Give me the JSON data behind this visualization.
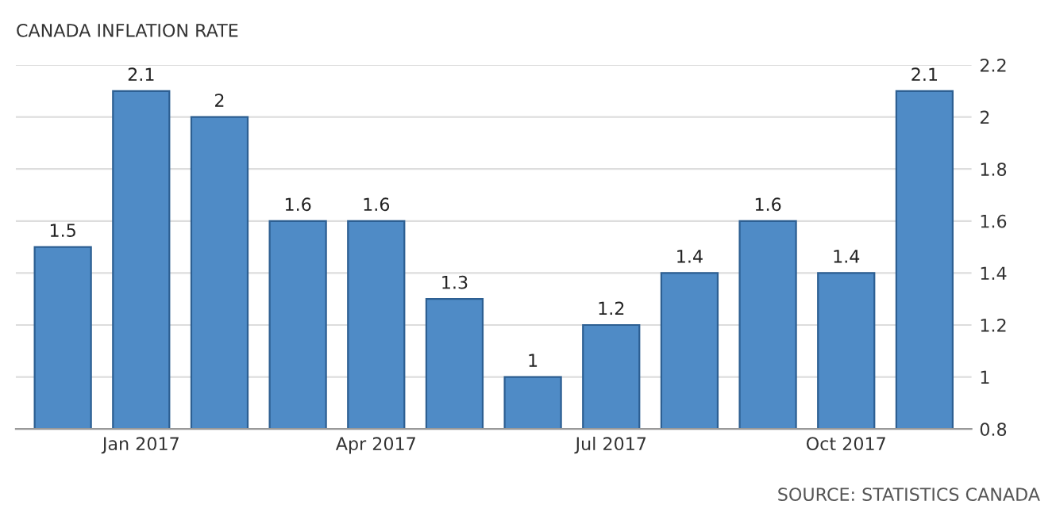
{
  "chart_data": {
    "type": "bar",
    "title": "CANADA INFLATION RATE",
    "categories": [
      null,
      "Jan 2017",
      null,
      null,
      "Apr 2017",
      null,
      null,
      "Jul 2017",
      null,
      null,
      "Oct 2017",
      null
    ],
    "values": [
      1.5,
      2.1,
      2,
      1.6,
      1.6,
      1.3,
      1,
      1.2,
      1.4,
      1.6,
      1.4,
      2.1
    ],
    "color": "#4f8bc6",
    "ylim": [
      0.8,
      2.2
    ],
    "yticks": [
      0.8,
      1,
      1.2,
      1.4,
      1.6,
      1.8,
      2,
      2.2
    ],
    "grid": "y",
    "data_labels": true,
    "legend": false,
    "annotations": [
      "SOURCE: STATISTICS CANADA"
    ]
  }
}
